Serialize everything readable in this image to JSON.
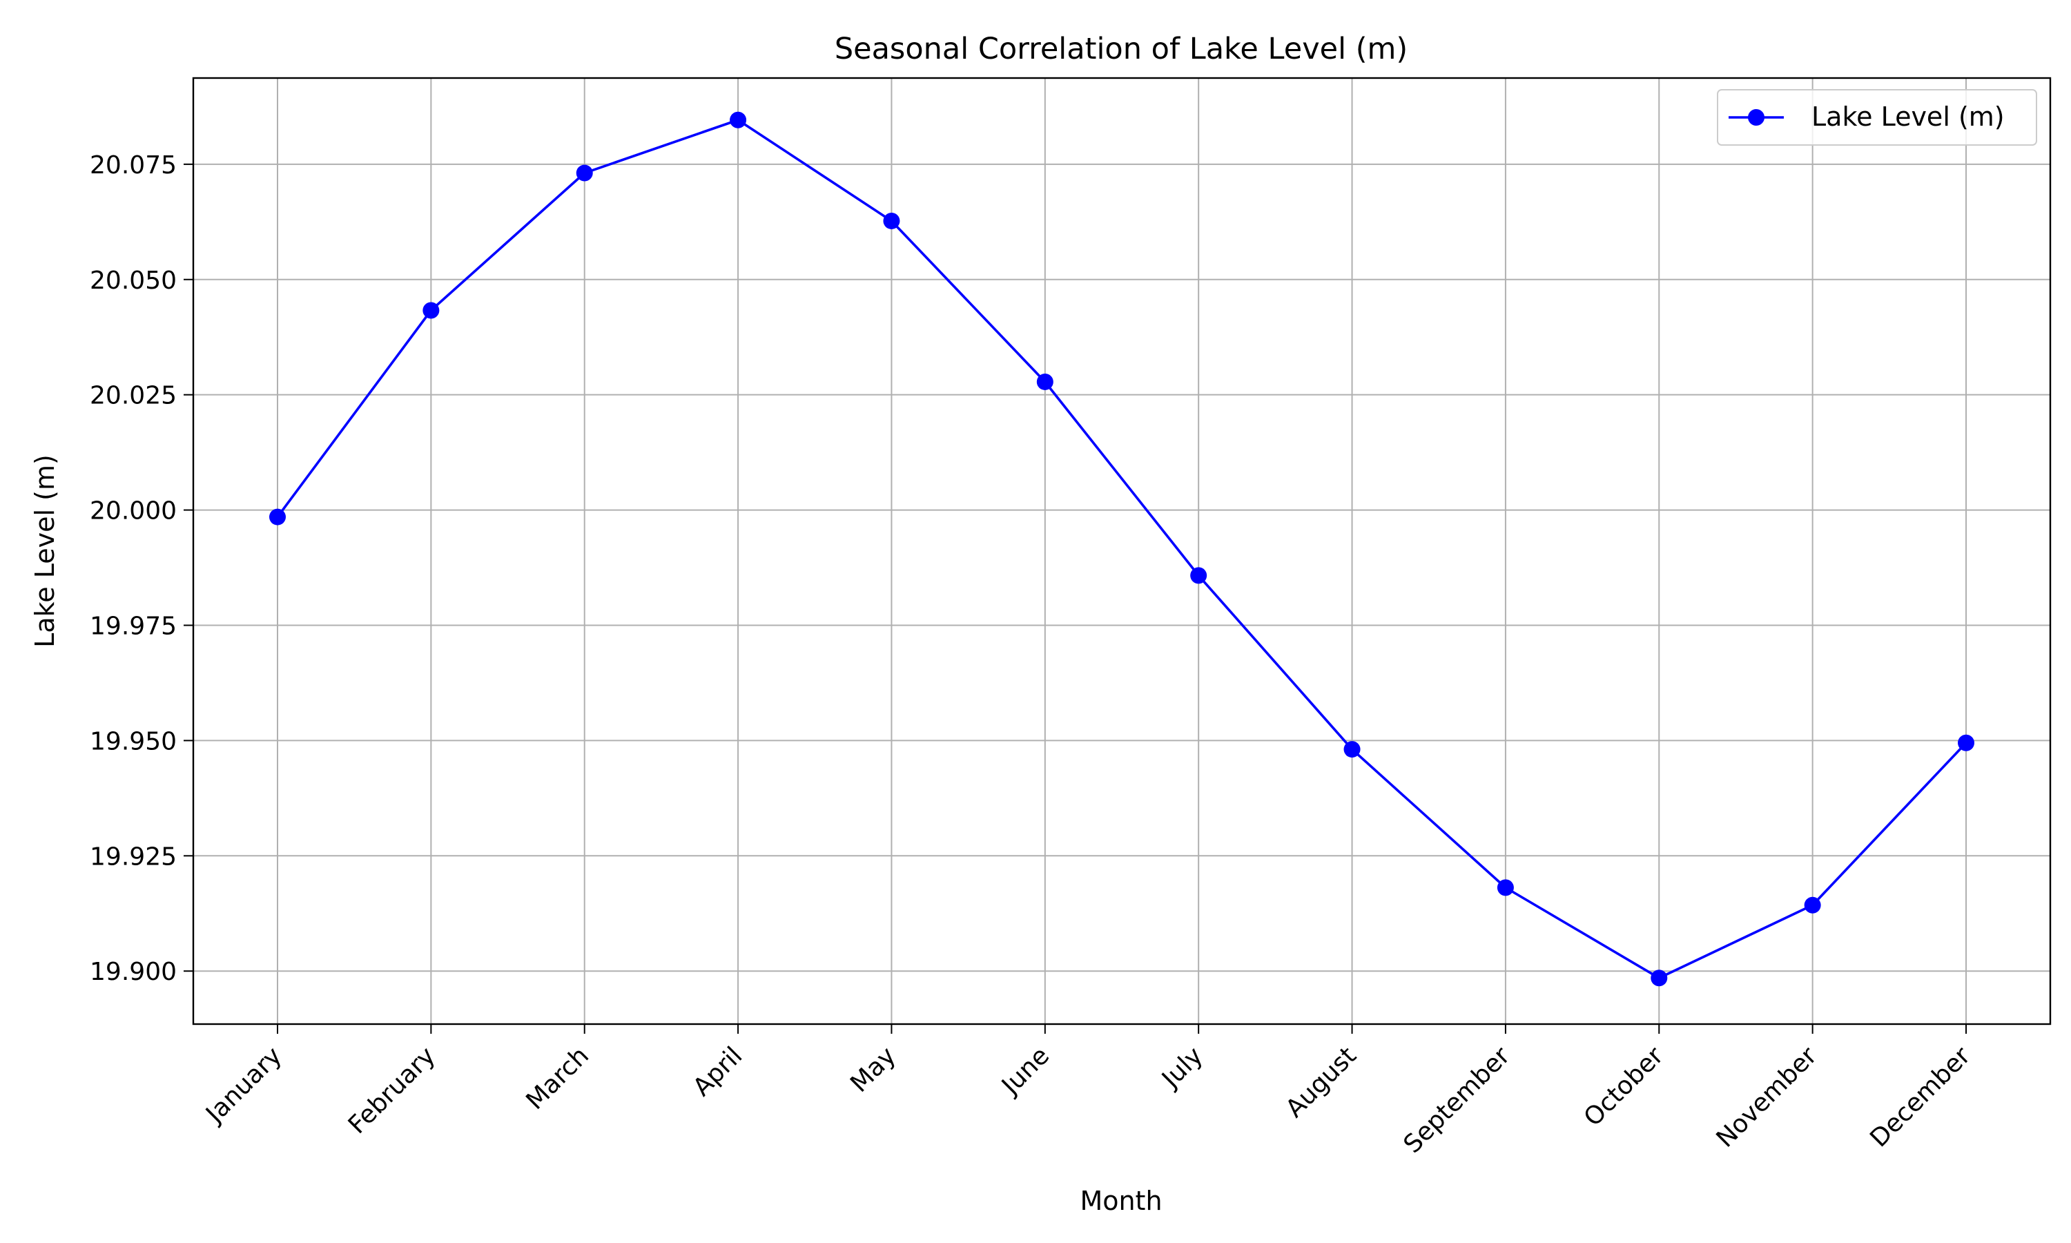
{
  "chart_data": {
    "type": "line",
    "title": "Seasonal Correlation of Lake Level (m)",
    "xlabel": "Month",
    "ylabel": "Lake Level (m)",
    "categories": [
      "January",
      "February",
      "March",
      "April",
      "May",
      "June",
      "July",
      "August",
      "September",
      "October",
      "November",
      "December"
    ],
    "series": [
      {
        "name": "Lake Level (m)",
        "color": "#0000ff",
        "marker": "circle",
        "values": [
          19.9985,
          20.0433,
          20.0731,
          20.0846,
          20.0627,
          20.0278,
          19.9858,
          19.9481,
          19.9181,
          19.8985,
          19.9143,
          19.9495
        ]
      }
    ],
    "ylim": [
      19.8885,
      20.0937
    ],
    "yticks": [
      19.9,
      19.925,
      19.95,
      19.975,
      20.0,
      20.025,
      20.05,
      20.075
    ],
    "ytick_labels": [
      "19.900",
      "19.925",
      "19.950",
      "19.975",
      "20.000",
      "20.025",
      "20.050",
      "20.075"
    ],
    "xtick_rotation": 45,
    "grid": true,
    "grid_color": "#b0b0b0",
    "legend_position": "top-right"
  }
}
